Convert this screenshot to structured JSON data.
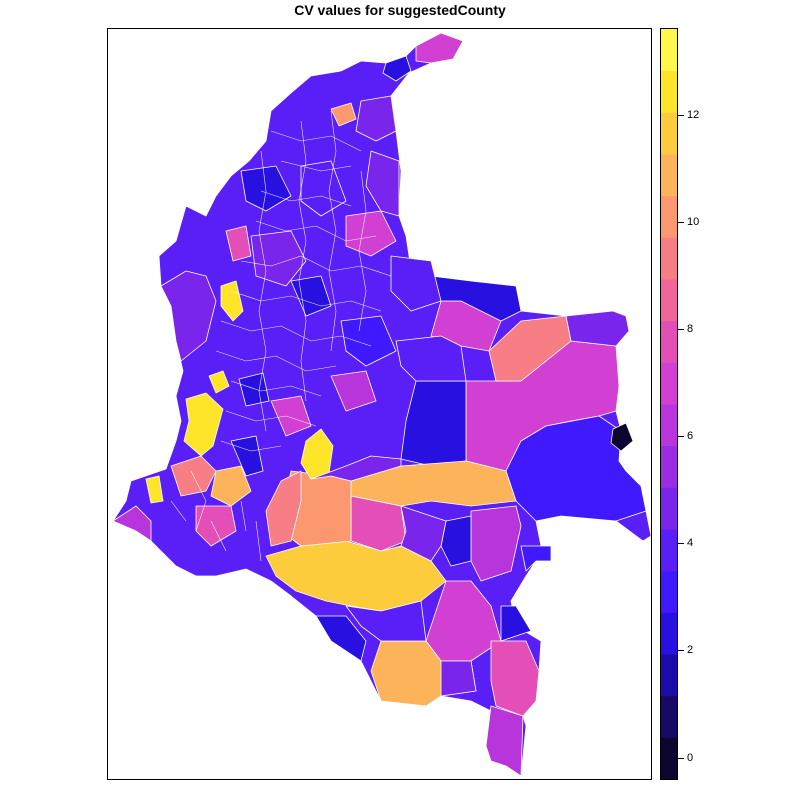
{
  "title": "CV values for suggestedCounty",
  "colorkey": {
    "min": -0.4,
    "max": 13.6,
    "ticks": [
      "0",
      "2",
      "4",
      "6",
      "8",
      "10",
      "12"
    ],
    "tick_values": [
      0,
      2,
      4,
      6,
      8,
      10,
      12
    ],
    "colors": [
      "#0b0530",
      "#170a67",
      "#1b0ba8",
      "#2811e0",
      "#4019ff",
      "#5a1ff6",
      "#7a25ec",
      "#9a2de3",
      "#b835dc",
      "#d23fd3",
      "#e44fb7",
      "#f0659a",
      "#f77e85",
      "#fb9870",
      "#fcb35a",
      "#fdcc3d",
      "#fee52a",
      "#fff84a"
    ]
  },
  "map": {
    "region": "Colombia municipalities",
    "border_color": "#ffffff"
  }
}
